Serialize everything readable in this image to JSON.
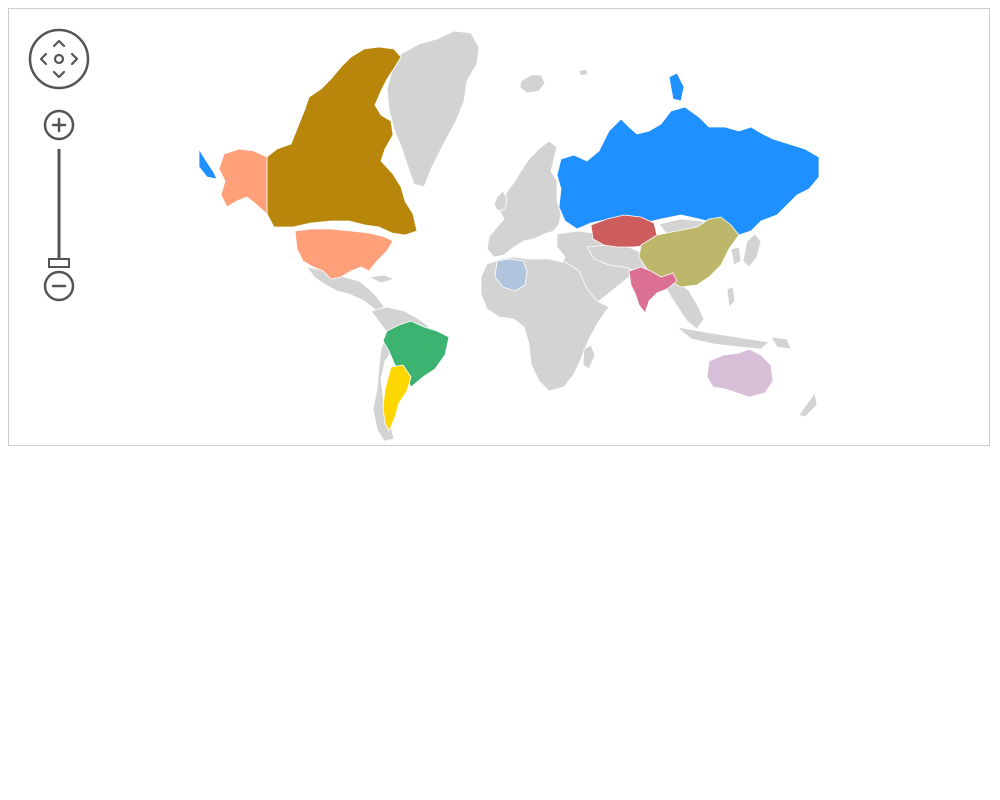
{
  "map": {
    "base_color": "#d3d3d3",
    "border_color": "#ffffff",
    "frame_border_color": "#cccccc",
    "highlighted_regions": [
      {
        "region": "canada",
        "color": "#b8860b"
      },
      {
        "region": "alaska",
        "color": "#ffa07a"
      },
      {
        "region": "united-states",
        "color": "#ffa07a"
      },
      {
        "region": "brazil",
        "color": "#3cb371"
      },
      {
        "region": "argentina",
        "color": "#ffd700"
      },
      {
        "region": "russia",
        "color": "#1e90ff"
      },
      {
        "region": "kazakhstan",
        "color": "#cd5c5c"
      },
      {
        "region": "china",
        "color": "#bdb76b"
      },
      {
        "region": "india",
        "color": "#db7093"
      },
      {
        "region": "australia",
        "color": "#d8bfd8"
      },
      {
        "region": "algeria",
        "color": "#b0c4de"
      }
    ]
  },
  "controls": {
    "pan_icon": "pan-arrows-icon",
    "zoom_in_icon": "plus-icon",
    "zoom_out_icon": "minus-icon",
    "zoom_level_fraction": 0.0,
    "color": "#555555"
  }
}
